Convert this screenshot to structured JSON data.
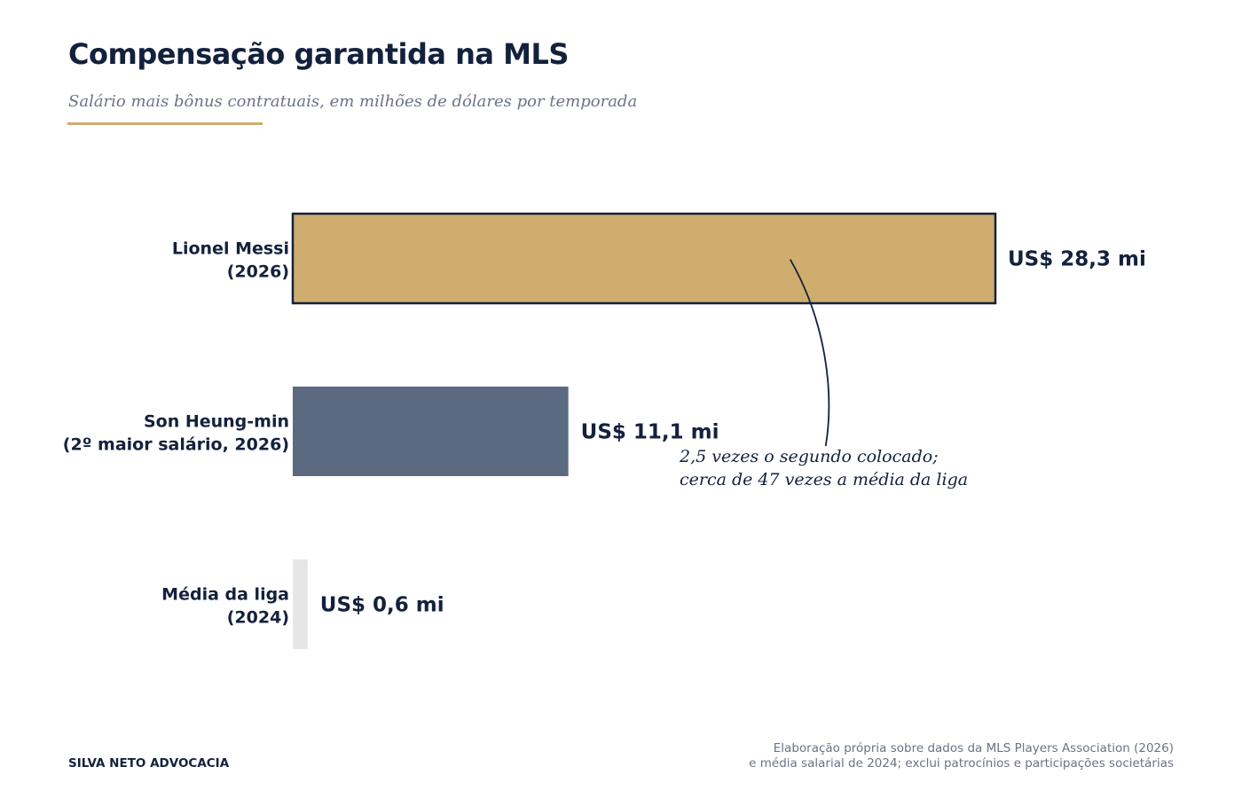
{
  "chart_data": {
    "type": "bar",
    "orientation": "horizontal",
    "title": "Compensação garantida na MLS",
    "subtitle": "Salário mais bônus contratuais, em milhões de dólares por temporada",
    "categories": [
      [
        "Lionel Messi",
        "(2026)"
      ],
      [
        "Son Heung-min",
        "(2º maior salário, 2026)"
      ],
      [
        "Média da liga",
        "(2024)"
      ]
    ],
    "values": [
      28.3,
      11.1,
      0.6
    ],
    "value_labels": [
      "US$ 28,3 mi",
      "US$ 11,1 mi",
      "US$ 0,6 mi"
    ],
    "bar_colors": [
      "#cfad6f",
      "#5b6a80",
      "#e6e6e6"
    ],
    "highlight_outline": "#13213d",
    "xlim": [
      0,
      28.3
    ],
    "xlabel": "",
    "ylabel": "",
    "grid": false,
    "annotation": {
      "lines": [
        "2,5 vezes o segundo colocado;",
        "cerca de 47 vezes a média da liga"
      ],
      "target_category": 0
    }
  },
  "footer": {
    "brand": "SILVA NETO ADVOCACIA",
    "source_lines": [
      "Elaboração própria sobre dados da MLS Players Association (2026)",
      "e média salarial de 2024; exclui patrocínios e participações societárias"
    ]
  },
  "colors": {
    "ink": "#13213d",
    "muted": "#6b7385",
    "accent": "#cfad6f"
  }
}
